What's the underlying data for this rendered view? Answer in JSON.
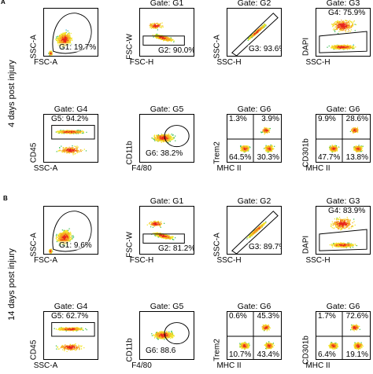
{
  "figure": {
    "panels": [
      {
        "letter": "A",
        "side_label": "4 days post injury",
        "plots": [
          {
            "title": "",
            "ylabel": "SSC-A",
            "xlabel": "FSC-A",
            "type": "blob-large",
            "gate": "G1: 19.7%"
          },
          {
            "title": "Gate: G1",
            "ylabel": "FSC-W",
            "xlabel": "FSC-H",
            "type": "band-low",
            "gate": "G2: 90.0%"
          },
          {
            "title": "Gate: G2",
            "ylabel": "SSC-A",
            "xlabel": "SSC-H",
            "type": "diagonal",
            "gate": "G3: 93.6%"
          },
          {
            "title": "Gate: G3",
            "ylabel": "DAPI",
            "xlabel": "SSC-H",
            "type": "dapi",
            "gate": "G4: 75.9%"
          },
          {
            "title": "Gate: G4",
            "ylabel": "CD45",
            "xlabel": "SSC-A",
            "type": "band-high",
            "gate": "G5: 94.2%"
          },
          {
            "title": "Gate: G5",
            "ylabel": "CD11b",
            "xlabel": "F4/80",
            "type": "oval",
            "gate": "G6: 38.2%"
          },
          {
            "title": "Gate: G6",
            "ylabel": "Trem2",
            "xlabel": "MHC II",
            "type": "quad",
            "quads": [
              "1.3%",
              "3.9%",
              "64.5%",
              "30.3%"
            ]
          },
          {
            "title": "Gate: G6",
            "ylabel": "CD301b",
            "xlabel": "MHC II",
            "type": "quad",
            "quads": [
              "9.9%",
              "28.6%",
              "47.7%",
              "13.8%"
            ]
          }
        ]
      },
      {
        "letter": "B",
        "side_label": "14 days post injury",
        "plots": [
          {
            "title": "",
            "ylabel": "SSC-A",
            "xlabel": "FSC-A",
            "type": "blob-large",
            "gate": "G1: 9.6%"
          },
          {
            "title": "Gate: G1",
            "ylabel": "FSC-W",
            "xlabel": "FSC-H",
            "type": "band-low",
            "gate": "G2: 81.2%"
          },
          {
            "title": "Gate: G2",
            "ylabel": "SSC-A",
            "xlabel": "SSC-H",
            "type": "diagonal",
            "gate": "G3: 89.7%"
          },
          {
            "title": "Gate: G3",
            "ylabel": "DAPI",
            "xlabel": "SSC-H",
            "type": "dapi",
            "gate": "G4: 83.9%"
          },
          {
            "title": "Gate: G4",
            "ylabel": "CD45",
            "xlabel": "SSC-A",
            "type": "band-high",
            "gate": "G5: 62.7%"
          },
          {
            "title": "Gate: G5",
            "ylabel": "CD11b",
            "xlabel": "F4/80",
            "type": "oval",
            "gate": "G6: 88.6"
          },
          {
            "title": "Gate: G6",
            "ylabel": "Trem2",
            "xlabel": "MHC II",
            "type": "quad",
            "quads": [
              "0.6%",
              "45.3%",
              "10.7%",
              "43.4%"
            ]
          },
          {
            "title": "Gate: G6",
            "ylabel": "CD301b",
            "xlabel": "MHC II",
            "type": "quad",
            "quads": [
              "1.7%",
              "72.6%",
              "6.4%",
              "19.1%"
            ]
          }
        ]
      }
    ]
  }
}
